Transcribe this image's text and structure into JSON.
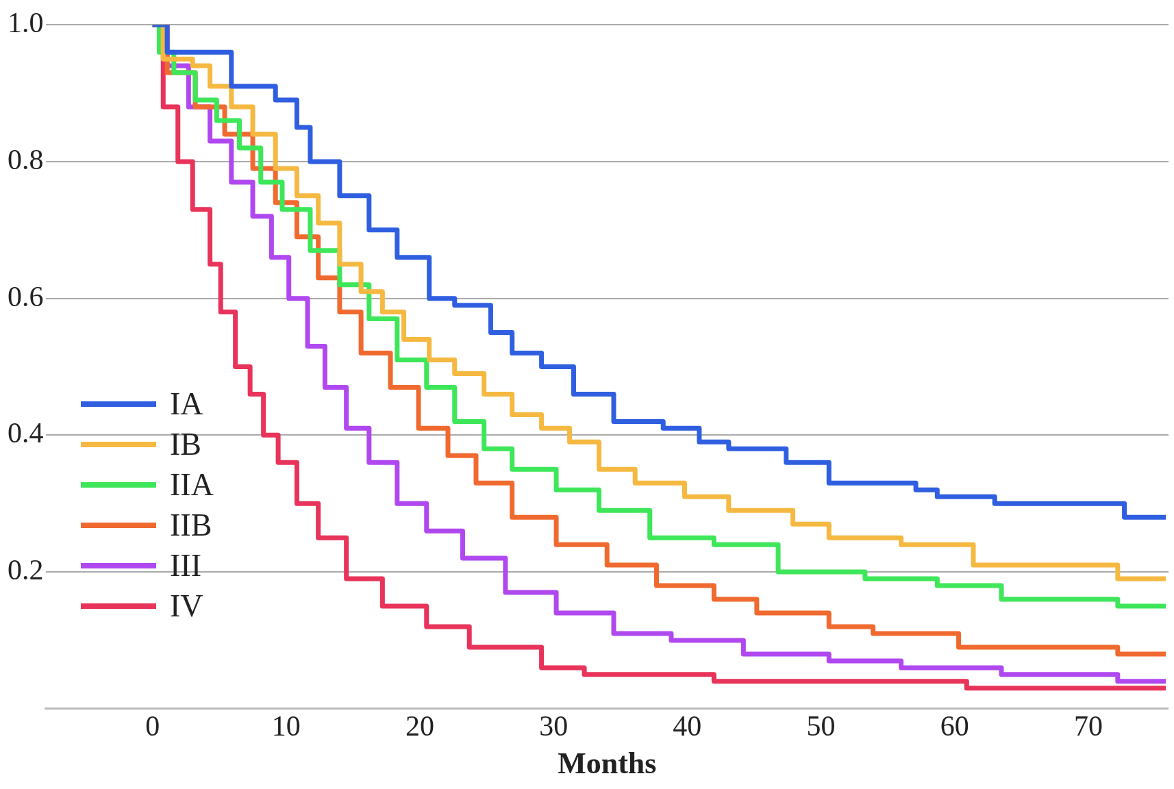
{
  "chart_data": {
    "type": "step",
    "xlabel": "Months",
    "xlim": [
      -8,
      76
    ],
    "xticks": [
      0,
      10,
      20,
      30,
      40,
      50,
      60,
      70
    ],
    "ylim": [
      0,
      1.0
    ],
    "yticks": [
      {
        "value": 0,
        "label": null
      },
      {
        "value": 0.2,
        "label": "0.2"
      },
      {
        "value": 0.4,
        "label": "0.4"
      },
      {
        "value": 0.6,
        "label": "0.6"
      },
      {
        "value": 0.8,
        "label": "0.8"
      },
      {
        "value": 1.0,
        "label": "1.0"
      }
    ],
    "grid": "y",
    "legend": "bottom left",
    "marker": "none",
    "line_style": "solid",
    "series": [
      {
        "name": "IA",
        "color": "#2f5fe0",
        "x": [
          0,
          1.1,
          5.9,
          9.2,
          10.8,
          11.8,
          14,
          16.2,
          18.3,
          20.7,
          22.6,
          25.3,
          26.9,
          29.1,
          31.5,
          34.5,
          38.2,
          40.9,
          43.1,
          47.4,
          50.6,
          57.1,
          58.7,
          63,
          72.7,
          75.8
        ],
        "values": [
          1.0,
          0.96,
          0.91,
          0.89,
          0.85,
          0.8,
          0.75,
          0.7,
          0.66,
          0.6,
          0.59,
          0.55,
          0.52,
          0.5,
          0.46,
          0.42,
          0.41,
          0.39,
          0.38,
          0.36,
          0.33,
          0.32,
          0.31,
          0.3,
          0.28,
          0.28
        ]
      },
      {
        "name": "IB",
        "color": "#f5b942",
        "x": [
          0,
          0.8,
          3,
          4.3,
          5.9,
          7.5,
          9.2,
          10.8,
          12.4,
          14,
          15.6,
          17.2,
          18.8,
          20.7,
          22.6,
          24.8,
          26.9,
          29.1,
          31.2,
          33.4,
          36.1,
          39.8,
          43.1,
          47.9,
          50.6,
          56,
          61.4,
          72.2,
          75.8
        ],
        "values": [
          1.0,
          0.95,
          0.94,
          0.91,
          0.88,
          0.84,
          0.79,
          0.75,
          0.71,
          0.65,
          0.61,
          0.58,
          0.54,
          0.51,
          0.49,
          0.46,
          0.43,
          0.41,
          0.39,
          0.35,
          0.33,
          0.31,
          0.29,
          0.27,
          0.25,
          0.24,
          0.21,
          0.19,
          0.19
        ]
      },
      {
        "name": "IIA",
        "color": "#3ee65a",
        "x": [
          0,
          0.5,
          1.6,
          3.2,
          4.8,
          6.5,
          8.1,
          9.7,
          11.8,
          14,
          16.2,
          18.3,
          20.5,
          22.6,
          24.8,
          26.9,
          30.2,
          33.4,
          37.2,
          42,
          46.8,
          53.3,
          58.7,
          63.5,
          72.2,
          75.8
        ],
        "values": [
          1.0,
          0.96,
          0.93,
          0.89,
          0.86,
          0.82,
          0.77,
          0.73,
          0.67,
          0.62,
          0.57,
          0.51,
          0.47,
          0.42,
          0.38,
          0.35,
          0.32,
          0.29,
          0.25,
          0.24,
          0.2,
          0.19,
          0.18,
          0.16,
          0.15,
          0.15
        ]
      },
      {
        "name": "IIB",
        "color": "#f06a30",
        "x": [
          0,
          1.1,
          3.2,
          5.4,
          7.5,
          9.2,
          10.8,
          12.4,
          14,
          15.6,
          17.8,
          19.9,
          22.1,
          24.2,
          26.9,
          30.2,
          34,
          37.7,
          42,
          45.2,
          50.6,
          53.9,
          60.3,
          72.2,
          75.8
        ],
        "values": [
          1.0,
          0.93,
          0.88,
          0.84,
          0.79,
          0.74,
          0.69,
          0.63,
          0.58,
          0.52,
          0.47,
          0.41,
          0.37,
          0.33,
          0.28,
          0.24,
          0.21,
          0.18,
          0.16,
          0.14,
          0.12,
          0.11,
          0.09,
          0.08,
          0.08
        ]
      },
      {
        "name": "III",
        "color": "#b048f0",
        "x": [
          0,
          1.1,
          2.7,
          4.3,
          5.9,
          7.5,
          8.9,
          10.2,
          11.6,
          12.9,
          14.5,
          16.2,
          18.3,
          20.5,
          23.2,
          26.4,
          30.2,
          34.5,
          38.8,
          44.2,
          50.6,
          56,
          63.5,
          72.2,
          75.8
        ],
        "values": [
          1.0,
          0.94,
          0.88,
          0.83,
          0.77,
          0.72,
          0.66,
          0.6,
          0.53,
          0.47,
          0.41,
          0.36,
          0.3,
          0.26,
          0.22,
          0.17,
          0.14,
          0.11,
          0.1,
          0.08,
          0.07,
          0.06,
          0.05,
          0.04,
          0.04
        ]
      },
      {
        "name": "IV",
        "color": "#e8335a",
        "x": [
          0,
          0.8,
          1.9,
          3,
          4.3,
          5.1,
          6.2,
          7.3,
          8.3,
          9.4,
          10.8,
          12.4,
          14.5,
          17.2,
          20.5,
          23.7,
          29.1,
          32.3,
          42,
          60.9,
          75.8
        ],
        "values": [
          1.0,
          0.88,
          0.8,
          0.73,
          0.65,
          0.58,
          0.5,
          0.46,
          0.4,
          0.36,
          0.3,
          0.25,
          0.19,
          0.15,
          0.12,
          0.09,
          0.06,
          0.05,
          0.04,
          0.03,
          0.03
        ]
      }
    ]
  }
}
